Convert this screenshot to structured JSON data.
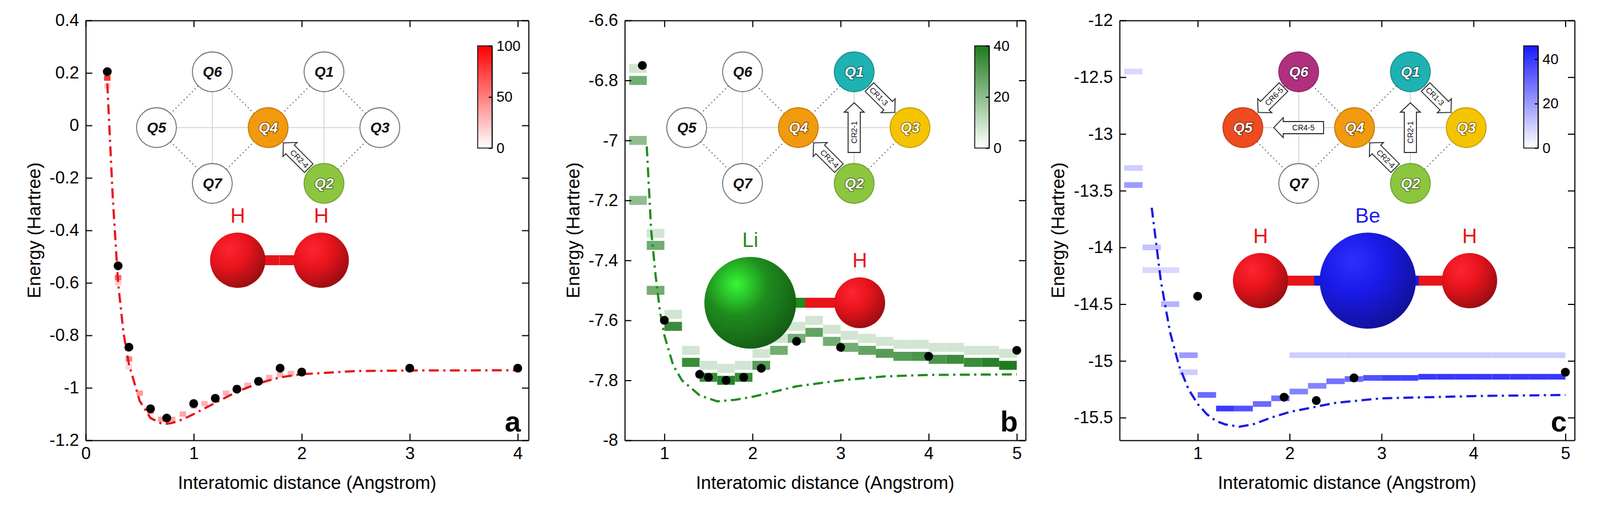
{
  "chart_data": [
    {
      "type": "line",
      "panel_label": "a",
      "x_label": "Interatomic distance (Angstrom)",
      "y_label": "Energy (Hartree)",
      "xlim": [
        0,
        4.1
      ],
      "xticks": [
        0,
        1,
        2,
        3,
        4
      ],
      "ylim": [
        -1.2,
        0.4
      ],
      "yticks": [
        -1.2,
        -1,
        -0.8,
        -0.6,
        -0.4,
        -0.2,
        0,
        0.2,
        0.4
      ],
      "series": [
        {
          "type": "line",
          "color": "#e8141c",
          "line_style": "dashdot",
          "x": [
            0.2,
            0.25,
            0.3,
            0.35,
            0.4,
            0.5,
            0.6,
            0.7,
            0.75,
            0.8,
            0.9,
            1.0,
            1.2,
            1.4,
            1.6,
            1.8,
            2.0,
            2.5,
            3.0,
            4.0
          ],
          "values": [
            0.16,
            -0.27,
            -0.6,
            -0.79,
            -0.91,
            -1.05,
            -1.115,
            -1.136,
            -1.137,
            -1.134,
            -1.12,
            -1.1,
            -1.057,
            -1.015,
            -0.983,
            -0.96,
            -0.948,
            -0.936,
            -0.934,
            -0.933
          ]
        },
        {
          "type": "scatter",
          "color": "#000000",
          "marker": "circle",
          "x": [
            0.2,
            0.3,
            0.4,
            0.6,
            0.75,
            1.0,
            1.2,
            1.4,
            1.6,
            1.8,
            2.0,
            3.0,
            4.0
          ],
          "values": [
            0.205,
            -0.535,
            -0.845,
            -1.08,
            -1.115,
            -1.06,
            -1.04,
            -1.005,
            -0.975,
            -0.925,
            -0.94,
            -0.925,
            -0.925
          ]
        }
      ],
      "heatmap": {
        "color": "#ff0000",
        "bin_width": 0.06,
        "bin_height": 0.02,
        "x": [
          0.2,
          0.2,
          0.3,
          0.3,
          0.4,
          0.4,
          0.5,
          0.6,
          0.7,
          0.8,
          0.9,
          1.0,
          1.1,
          1.2,
          1.3,
          1.4,
          1.5,
          1.6,
          1.7,
          1.8,
          1.9,
          2.0,
          3.0,
          4.0
        ],
        "y": [
          0.18,
          0.15,
          -0.58,
          -0.6,
          -0.89,
          -0.92,
          -1.02,
          -1.09,
          -1.12,
          -1.12,
          -1.1,
          -1.07,
          -1.06,
          -1.04,
          -1.02,
          -1.0,
          -0.99,
          -0.97,
          -0.96,
          -0.95,
          -0.945,
          -0.94,
          -0.93,
          -0.93
        ],
        "values": [
          80,
          20,
          60,
          20,
          50,
          15,
          40,
          45,
          40,
          35,
          35,
          30,
          30,
          35,
          30,
          35,
          30,
          35,
          30,
          30,
          30,
          35,
          40,
          40
        ],
        "colorbar": {
          "range": [
            0,
            100
          ],
          "ticks": [
            0,
            50,
            100
          ]
        }
      },
      "qubits": {
        "labels": [
          "Q1",
          "Q2",
          "Q3",
          "Q4",
          "Q5",
          "Q6",
          "Q7"
        ],
        "colors": [
          "#ffffff",
          "#8cc63f",
          "#ffffff",
          "#f29a0e",
          "#ffffff",
          "#ffffff",
          "#ffffff"
        ]
      },
      "couplings": [
        {
          "label": "CR2-4",
          "from": "Q2",
          "to": "Q4"
        }
      ],
      "molecule": [
        {
          "label": "H",
          "color": "#e8141c"
        },
        {
          "label": "H",
          "color": "#e8141c"
        }
      ]
    },
    {
      "type": "line",
      "panel_label": "b",
      "x_label": "Interatomic distance (Angstrom)",
      "y_label": "Energy (Hartree)",
      "xlim": [
        0.55,
        5.1
      ],
      "xticks": [
        1,
        2,
        3,
        4,
        5
      ],
      "ylim": [
        -8,
        -6.6
      ],
      "yticks": [
        -8,
        -7.8,
        -7.6,
        -7.4,
        -7.2,
        -7,
        -6.8,
        -6.6
      ],
      "series": [
        {
          "type": "line",
          "color": "#1e8c1e",
          "line_style": "dashdot",
          "x": [
            0.8,
            0.85,
            0.9,
            0.95,
            1.0,
            1.1,
            1.2,
            1.4,
            1.6,
            1.8,
            2.0,
            2.5,
            3.0,
            3.5,
            4.0,
            5.0
          ],
          "values": [
            -7.02,
            -7.3,
            -7.45,
            -7.57,
            -7.65,
            -7.75,
            -7.8,
            -7.85,
            -7.87,
            -7.865,
            -7.855,
            -7.82,
            -7.8,
            -7.787,
            -7.782,
            -7.78
          ]
        },
        {
          "type": "scatter",
          "color": "#000000",
          "marker": "circle",
          "x": [
            0.75,
            1.0,
            1.4,
            1.5,
            1.7,
            1.9,
            2.1,
            2.5,
            3.0,
            4.0,
            5.0
          ],
          "values": [
            -6.75,
            -7.6,
            -7.78,
            -7.79,
            -7.8,
            -7.79,
            -7.76,
            -7.67,
            -7.69,
            -7.72,
            -7.7
          ]
        }
      ],
      "heatmap": {
        "color": "#1e7b1e",
        "bin_width": 0.2,
        "bin_height": 0.03,
        "x": [
          0.7,
          0.9,
          1.1,
          1.3,
          1.5,
          1.7,
          1.9,
          2.1,
          2.3,
          2.5,
          2.7,
          2.9,
          3.1,
          3.3,
          3.5,
          3.7,
          3.9,
          4.1,
          4.3,
          4.5,
          4.7,
          4.9,
          0.7,
          0.9,
          1.1,
          1.3,
          1.5,
          1.7,
          1.9,
          2.1,
          2.3,
          2.5,
          2.7,
          2.9,
          3.1,
          3.3,
          3.5,
          3.7,
          3.9,
          4.1,
          4.3,
          4.5,
          4.7,
          4.9,
          0.7,
          0.7,
          0.9
        ],
        "y": [
          -6.8,
          -7.35,
          -7.62,
          -7.74,
          -7.79,
          -7.8,
          -7.79,
          -7.75,
          -7.7,
          -7.66,
          -7.64,
          -7.67,
          -7.69,
          -7.7,
          -7.71,
          -7.72,
          -7.72,
          -7.73,
          -7.73,
          -7.74,
          -7.74,
          -7.75,
          -6.76,
          -7.31,
          -7.58,
          -7.7,
          -7.75,
          -7.76,
          -7.75,
          -7.71,
          -7.66,
          -7.62,
          -7.6,
          -7.63,
          -7.65,
          -7.66,
          -7.67,
          -7.68,
          -7.68,
          -7.69,
          -7.69,
          -7.7,
          -7.7,
          -7.71,
          -7.0,
          -7.2,
          -7.5
        ],
        "values": [
          25,
          25,
          35,
          35,
          35,
          38,
          35,
          30,
          25,
          25,
          28,
          25,
          25,
          28,
          30,
          30,
          32,
          32,
          35,
          35,
          38,
          40,
          8,
          8,
          8,
          8,
          8,
          8,
          8,
          8,
          8,
          8,
          8,
          8,
          8,
          8,
          8,
          8,
          8,
          8,
          8,
          8,
          8,
          8,
          20,
          20,
          25
        ],
        "colorbar": {
          "range": [
            0,
            40
          ],
          "ticks": [
            0,
            20,
            40
          ]
        }
      },
      "qubits": {
        "labels": [
          "Q1",
          "Q2",
          "Q3",
          "Q4",
          "Q5",
          "Q6",
          "Q7"
        ],
        "colors": [
          "#1fb2b2",
          "#8cc63f",
          "#f5c400",
          "#f29a0e",
          "#ffffff",
          "#ffffff",
          "#ffffff"
        ]
      },
      "couplings": [
        {
          "label": "CR2-4",
          "from": "Q2",
          "to": "Q4"
        },
        {
          "label": "CR2-1",
          "from": "Q2",
          "to": "Q1"
        },
        {
          "label": "CR1-3",
          "from": "Q1",
          "to": "Q3"
        }
      ],
      "molecule": [
        {
          "label": "Li",
          "color": "#1e8c1e"
        },
        {
          "label": "H",
          "color": "#e8141c"
        }
      ]
    },
    {
      "type": "line",
      "panel_label": "c",
      "x_label": "Interatomic distance (Angstrom)",
      "y_label": "Energy (Hartree)",
      "xlim": [
        0.15,
        5.1
      ],
      "xticks": [
        1,
        2,
        3,
        4,
        5
      ],
      "ylim": [
        -15.7,
        -12
      ],
      "yticks": [
        -15.5,
        -15,
        -14.5,
        -14,
        -13.5,
        -13,
        -12.5,
        -12
      ],
      "series": [
        {
          "type": "line",
          "color": "#1a1ae6",
          "line_style": "dashdot",
          "x": [
            0.5,
            0.6,
            0.7,
            0.8,
            0.9,
            1.0,
            1.1,
            1.2,
            1.3,
            1.45,
            1.6,
            1.8,
            2.0,
            2.5,
            3.0,
            4.0,
            5.0
          ],
          "values": [
            -13.65,
            -14.3,
            -14.75,
            -15.05,
            -15.25,
            -15.38,
            -15.47,
            -15.53,
            -15.56,
            -15.58,
            -15.56,
            -15.5,
            -15.45,
            -15.37,
            -15.33,
            -15.31,
            -15.3
          ]
        },
        {
          "type": "scatter",
          "color": "#000000",
          "marker": "circle",
          "x": [
            1.0,
            1.94,
            2.29,
            2.7,
            5.0
          ],
          "values": [
            -14.43,
            -15.32,
            -15.35,
            -15.15,
            -15.1
          ]
        }
      ],
      "heatmap": {
        "color": "#1a1aff",
        "bin_width": 0.2,
        "bin_height": 0.05,
        "x": [
          0.3,
          0.5,
          0.7,
          0.9,
          1.1,
          1.3,
          1.5,
          1.7,
          1.9,
          2.1,
          2.3,
          2.5,
          2.7,
          2.9,
          3.1,
          3.3,
          3.5,
          3.7,
          3.9,
          4.1,
          4.3,
          4.5,
          4.7,
          4.9,
          2.1,
          2.3,
          2.5,
          2.7,
          2.9,
          3.1,
          3.3,
          3.5,
          3.7,
          3.9,
          4.1,
          4.3,
          4.5,
          4.7,
          4.9,
          0.3,
          0.3,
          0.5,
          0.7,
          0.9
        ],
        "y": [
          -13.45,
          -14.0,
          -14.5,
          -14.95,
          -15.3,
          -15.42,
          -15.42,
          -15.38,
          -15.33,
          -15.27,
          -15.22,
          -15.18,
          -15.16,
          -15.15,
          -15.15,
          -15.15,
          -15.14,
          -15.14,
          -15.14,
          -15.14,
          -15.14,
          -15.14,
          -15.14,
          -15.14,
          -14.95,
          -14.95,
          -14.95,
          -14.95,
          -14.95,
          -14.95,
          -14.95,
          -14.95,
          -14.95,
          -14.95,
          -14.95,
          -14.95,
          -14.95,
          -14.95,
          -14.95,
          -12.45,
          -13.3,
          -14.2,
          -14.2,
          -15.1
        ],
        "values": [
          20,
          12,
          15,
          20,
          30,
          40,
          35,
          30,
          28,
          25,
          25,
          28,
          30,
          35,
          38,
          38,
          40,
          40,
          40,
          40,
          40,
          40,
          40,
          40,
          10,
          10,
          10,
          10,
          10,
          10,
          10,
          10,
          10,
          10,
          10,
          10,
          10,
          10,
          10,
          8,
          10,
          8,
          8,
          10
        ],
        "colorbar": {
          "range": [
            0,
            46
          ],
          "ticks": [
            0,
            20,
            40
          ]
        }
      },
      "qubits": {
        "labels": [
          "Q1",
          "Q2",
          "Q3",
          "Q4",
          "Q5",
          "Q6",
          "Q7"
        ],
        "colors": [
          "#1fb2b2",
          "#8cc63f",
          "#f5c400",
          "#f29a0e",
          "#ee4b1f",
          "#b0307f",
          "#ffffff"
        ]
      },
      "couplings": [
        {
          "label": "CR6-5",
          "from": "Q6",
          "to": "Q5"
        },
        {
          "label": "CR4-5",
          "from": "Q4",
          "to": "Q5"
        },
        {
          "label": "CR2-4",
          "from": "Q2",
          "to": "Q4"
        },
        {
          "label": "CR2-1",
          "from": "Q2",
          "to": "Q1"
        },
        {
          "label": "CR1-3",
          "from": "Q1",
          "to": "Q3"
        }
      ],
      "molecule": [
        {
          "label": "H",
          "color": "#e8141c"
        },
        {
          "label": "Be",
          "color": "#1a1ae6"
        },
        {
          "label": "H",
          "color": "#e8141c"
        }
      ]
    }
  ]
}
